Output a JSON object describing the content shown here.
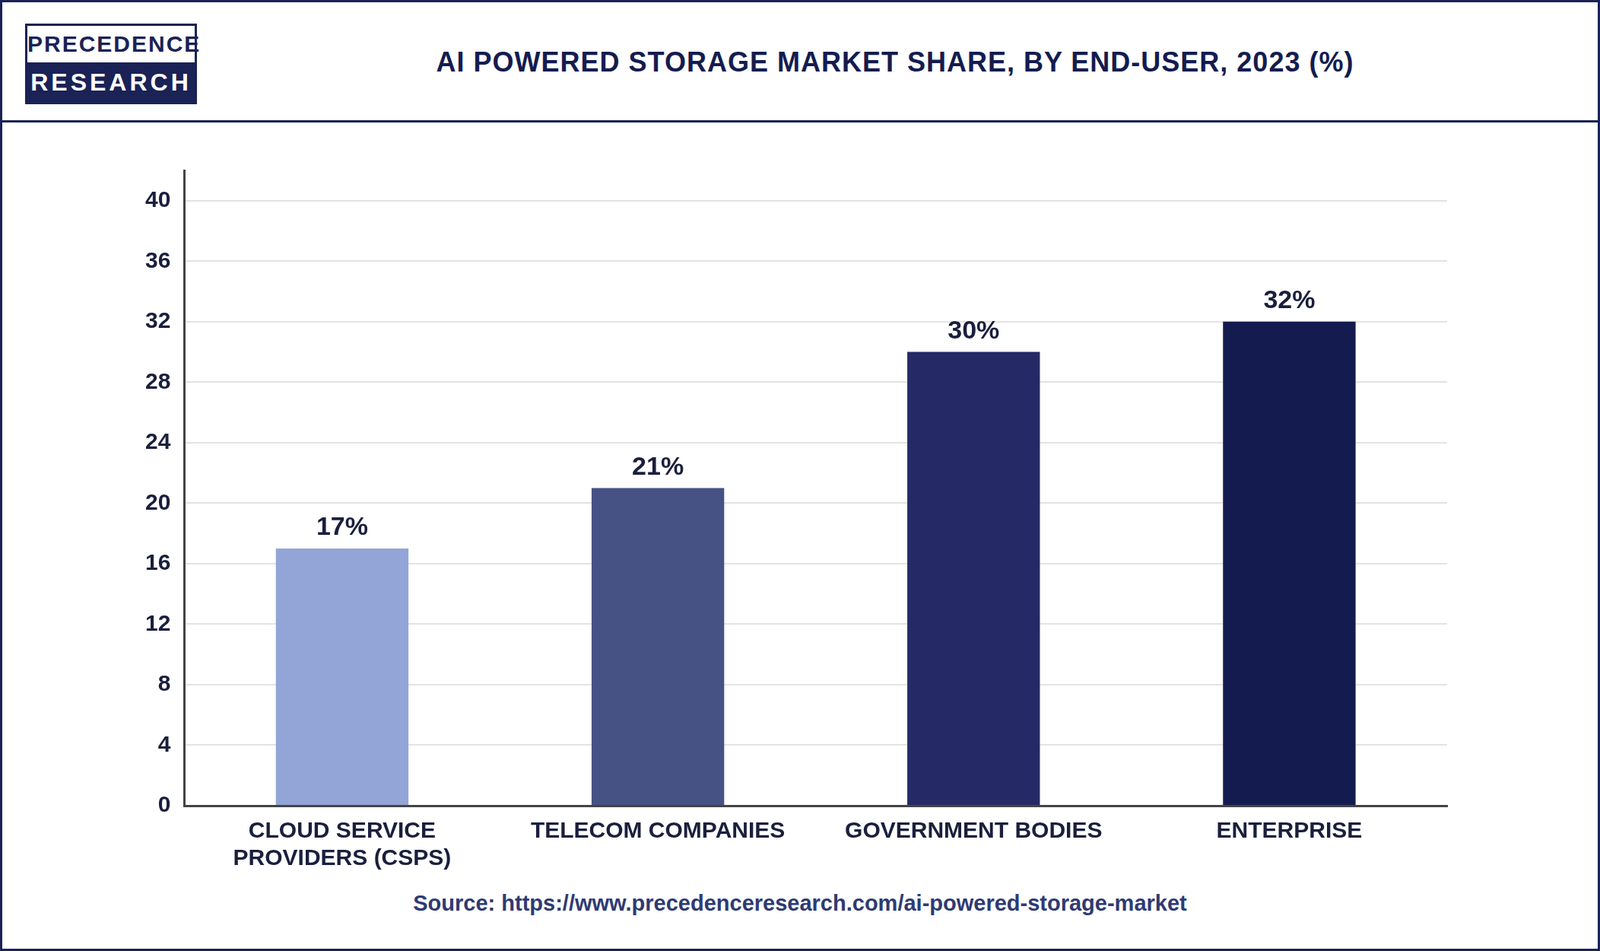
{
  "chart_data": {
    "type": "bar",
    "title": "AI POWERED STORAGE MARKET SHARE, BY END-USER, 2023 (%)",
    "logo": [
      "PRECEDENCE",
      "RESEARCH"
    ],
    "source": "Source: https://www.precedenceresearch.com/ai-powered-storage-market",
    "categories": [
      "CLOUD SERVICE PROVIDERS (CSPS)",
      "TELECOM COMPANIES",
      "GOVERNMENT BODIES",
      "ENTERPRISE"
    ],
    "values": [
      17,
      21,
      30,
      32
    ],
    "value_labels": [
      "17%",
      "21%",
      "30%",
      "32%"
    ],
    "colors": [
      "#93a5d6",
      "#465184",
      "#252a66",
      "#141c4f"
    ],
    "ylim": [
      0,
      42
    ],
    "yticks": [
      0,
      4,
      8,
      12,
      16,
      20,
      24,
      28,
      32,
      36,
      40
    ],
    "grid": true,
    "data_labels": true
  }
}
